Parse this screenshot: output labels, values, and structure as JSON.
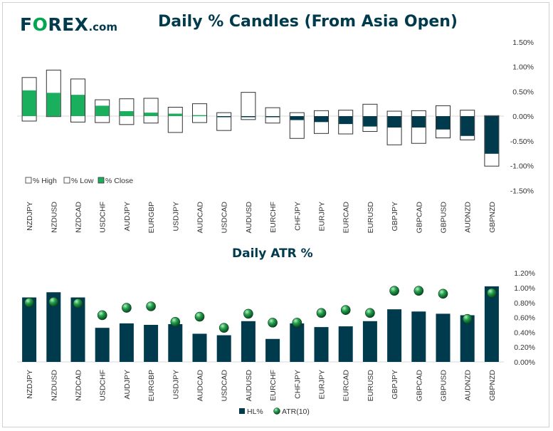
{
  "logo": {
    "main": "FOREX",
    "suffix": ".com"
  },
  "colors": {
    "navy": "#003a4d",
    "green": "#1aaf5d",
    "white": "#ffffff",
    "atr_green": "#22a04b"
  },
  "chart_data": [
    {
      "type": "candlestick",
      "title": "Daily % Candles (From Asia Open)",
      "categories": [
        "NZDJPY",
        "NZDUSD",
        "NZDCAD",
        "USDCHF",
        "AUDJPY",
        "EURGBP",
        "USDJPY",
        "AUDCAD",
        "USDCAD",
        "AUDUSD",
        "EURCHF",
        "CHFJPY",
        "EURJPY",
        "EURCAD",
        "EURUSD",
        "GBPJPY",
        "GBPCAD",
        "GBPUSD",
        "AUDNZD",
        "GBPNZD"
      ],
      "series": [
        {
          "name": "% High",
          "values": [
            0.78,
            0.93,
            0.75,
            0.33,
            0.35,
            0.36,
            0.18,
            0.25,
            0.07,
            0.48,
            0.17,
            0.07,
            0.11,
            0.12,
            0.24,
            0.1,
            0.11,
            0.21,
            0.12,
            0.01
          ]
        },
        {
          "name": "% Low",
          "values": [
            -0.1,
            -0.01,
            -0.12,
            -0.13,
            -0.17,
            -0.14,
            -0.33,
            -0.13,
            -0.29,
            -0.07,
            -0.14,
            -0.45,
            -0.35,
            -0.36,
            -0.31,
            -0.58,
            -0.55,
            -0.44,
            -0.48,
            -1.01
          ]
        },
        {
          "name": "% Close",
          "values": [
            0.52,
            0.47,
            0.43,
            0.21,
            0.1,
            0.07,
            0.05,
            0.02,
            -0.01,
            -0.01,
            -0.01,
            -0.08,
            -0.12,
            -0.16,
            -0.21,
            -0.23,
            -0.23,
            -0.27,
            -0.4,
            -0.76
          ]
        }
      ],
      "y_ticks": [
        "1.50%",
        "1.00%",
        "0.50%",
        "0.00%",
        "-0.50%",
        "-1.00%",
        "-1.50%"
      ],
      "ylim": [
        -1.5,
        1.5
      ],
      "legend": [
        "% High",
        "% Low",
        "% Close"
      ]
    },
    {
      "type": "bar+scatter",
      "title": "Daily ATR %",
      "categories": [
        "NZDJPY",
        "NZDUSD",
        "NZDCAD",
        "USDCHF",
        "AUDJPY",
        "EURGBP",
        "USDJPY",
        "AUDCAD",
        "USDCAD",
        "AUDUSD",
        "EURCHF",
        "CHFJPY",
        "EURJPY",
        "EURCAD",
        "EURUSD",
        "GBPJPY",
        "GBPCAD",
        "GBPUSD",
        "AUDNZD",
        "GBPNZD"
      ],
      "series": [
        {
          "name": "HL%",
          "values": [
            0.87,
            0.94,
            0.87,
            0.46,
            0.52,
            0.5,
            0.51,
            0.38,
            0.36,
            0.55,
            0.31,
            0.52,
            0.47,
            0.48,
            0.55,
            0.71,
            0.68,
            0.65,
            0.63,
            1.02
          ]
        },
        {
          "name": "ATR(10)",
          "values": [
            0.8,
            0.81,
            0.79,
            0.63,
            0.73,
            0.75,
            0.54,
            0.61,
            0.46,
            0.65,
            0.53,
            0.53,
            0.66,
            0.7,
            0.66,
            0.96,
            0.96,
            0.92,
            0.58,
            0.93
          ]
        }
      ],
      "y_ticks": [
        "1.20%",
        "1.00%",
        "0.80%",
        "0.60%",
        "0.40%",
        "0.20%",
        "0.00%"
      ],
      "ylim": [
        0,
        1.2
      ],
      "legend": [
        "HL%",
        "ATR(10)"
      ]
    }
  ]
}
